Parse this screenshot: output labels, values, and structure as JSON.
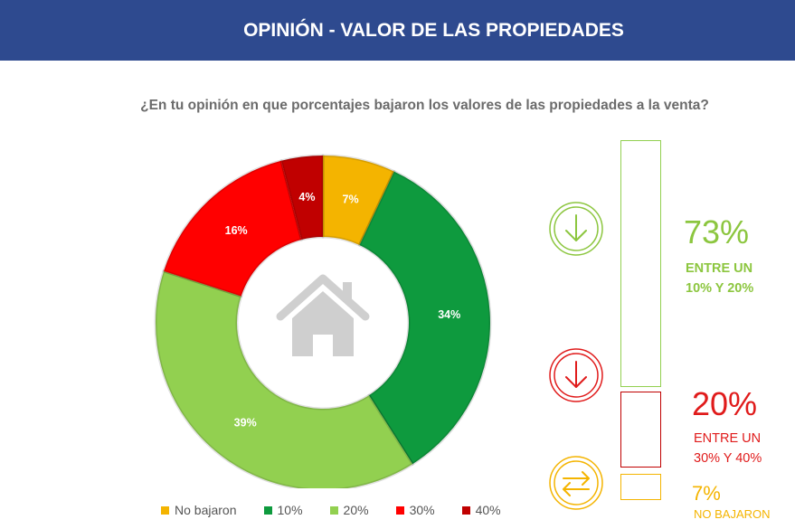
{
  "header": {
    "title": "OPINIÓN - VALOR DE LAS PROPIEDADES"
  },
  "colors": {
    "header_bg": "#2e4a8f",
    "no_bajaron": "#f4b400",
    "p10": "#0e9a3e",
    "p20": "#92d050",
    "p30": "#ff0000",
    "p40": "#c00000",
    "summary_green": "#8cc63f",
    "summary_red": "#e01b1b",
    "summary_yellow": "#f4b400"
  },
  "chart_data": {
    "type": "donut",
    "title": "¿En tu opinión en que porcentajes bajaron los valores de las propiedades a la venta?",
    "slices": [
      {
        "label": "No bajaron",
        "value": 7,
        "display": "7%",
        "color": "#f4b400"
      },
      {
        "label": "10%",
        "value": 34,
        "display": "34%",
        "color": "#0e9a3e"
      },
      {
        "label": "20%",
        "value": 39,
        "display": "39%",
        "color": "#92d050"
      },
      {
        "label": "30%",
        "value": 16,
        "display": "16%",
        "color": "#ff0000"
      },
      {
        "label": "40%",
        "value": 4,
        "display": "4%",
        "color": "#c00000"
      }
    ],
    "legend_position": "bottom",
    "center_icon": "house-icon"
  },
  "summary": [
    {
      "pct": "73%",
      "line1": "ENTRE UN",
      "line2": "10% Y 20%",
      "icon": "arrow-down-circle-icon",
      "color": "#8cc63f",
      "value": 73
    },
    {
      "pct": "20%",
      "line1": "ENTRE UN",
      "line2": "30% Y 40%",
      "icon": "arrow-down-circle-icon",
      "color": "#e01b1b",
      "value": 20
    },
    {
      "pct": "7%",
      "line1": "NO BAJARON",
      "line2": "",
      "icon": "swap-arrows-icon",
      "color": "#f4b400",
      "value": 7
    }
  ]
}
